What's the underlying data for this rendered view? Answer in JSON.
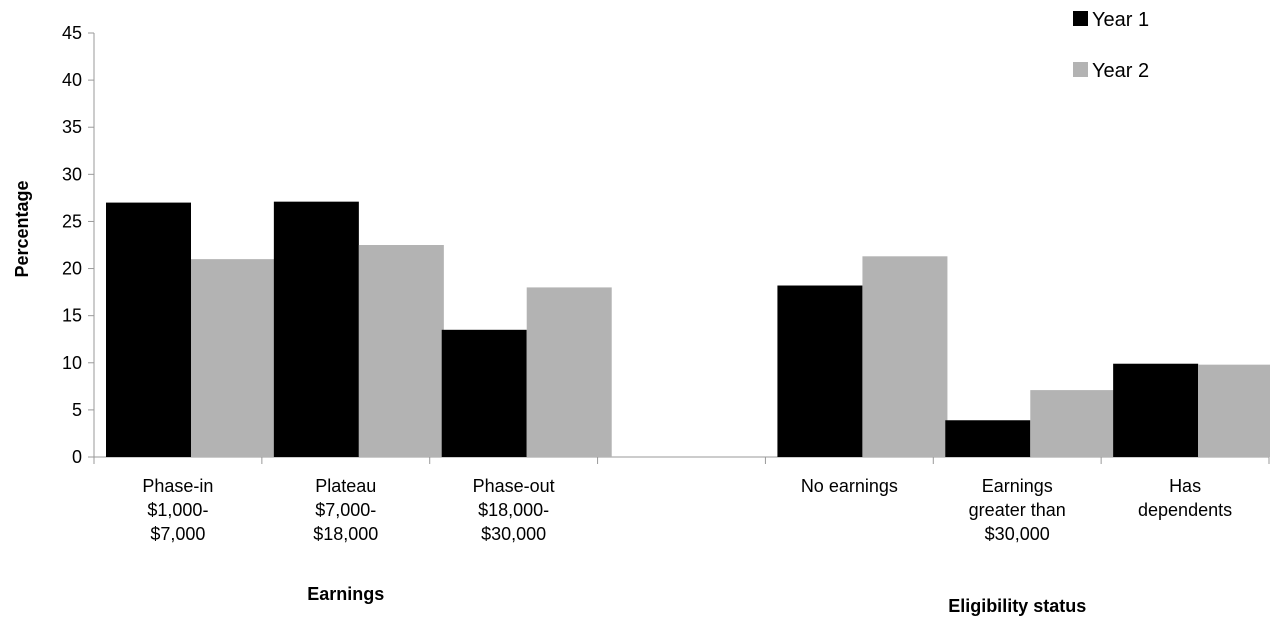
{
  "chart_data": {
    "type": "bar",
    "ylabel": "Percentage",
    "ylim": [
      0,
      45
    ],
    "yticks": [
      0,
      5,
      10,
      15,
      20,
      25,
      30,
      35,
      40,
      45
    ],
    "grid": false,
    "legend_position": "top-right",
    "categories": [
      [
        "Phase-in",
        "$1,000-",
        "$7,000"
      ],
      [
        "Plateau",
        "$7,000-",
        "$18,000"
      ],
      [
        "Phase-out",
        "$18,000-",
        "$30,000"
      ],
      [],
      [
        "No earnings"
      ],
      [
        "Earnings",
        "greater than",
        "$30,000"
      ],
      [
        "Has",
        "dependents"
      ]
    ],
    "groups": [
      {
        "label": "Earnings",
        "categories": [
          0,
          1,
          2
        ]
      },
      {
        "label": "Eligibility status",
        "categories": [
          4,
          5,
          6
        ]
      }
    ],
    "series": [
      {
        "name": "Year 1",
        "color": "#000000",
        "values": [
          27.0,
          27.1,
          13.5,
          null,
          18.2,
          3.9,
          9.9
        ]
      },
      {
        "name": "Year 2",
        "color": "#b3b3b3",
        "values": [
          21.0,
          22.5,
          18.0,
          null,
          21.3,
          7.1,
          9.8
        ]
      }
    ]
  }
}
